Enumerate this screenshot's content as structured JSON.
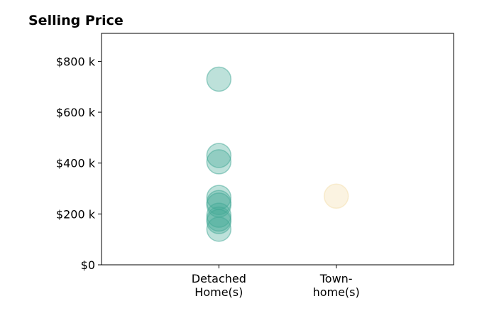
{
  "chart_data": {
    "type": "scatter",
    "title": "Selling Price",
    "xlabel": "",
    "ylabel": "",
    "categories": [
      {
        "lines": [
          "Detached",
          "Home(s)"
        ],
        "color": "#41a896"
      },
      {
        "lines": [
          "Town-",
          "home(s)"
        ],
        "color": "#f3deaa"
      }
    ],
    "xlim": [
      -1,
      2
    ],
    "ylim": [
      0,
      910000
    ],
    "yticks": [
      {
        "value": 0,
        "label": "$0"
      },
      {
        "value": 200000,
        "label": "$200 k"
      },
      {
        "value": 400000,
        "label": "$400 k"
      },
      {
        "value": 600000,
        "label": "$600 k"
      },
      {
        "value": 800000,
        "label": "$800 k"
      }
    ],
    "grid": false,
    "legend": "none",
    "series": [
      {
        "category": 0,
        "values": [
          730000,
          430000,
          405000,
          265000,
          245000,
          235000,
          195000,
          180000,
          170000,
          140000
        ]
      },
      {
        "category": 1,
        "values": [
          270000
        ]
      }
    ]
  }
}
